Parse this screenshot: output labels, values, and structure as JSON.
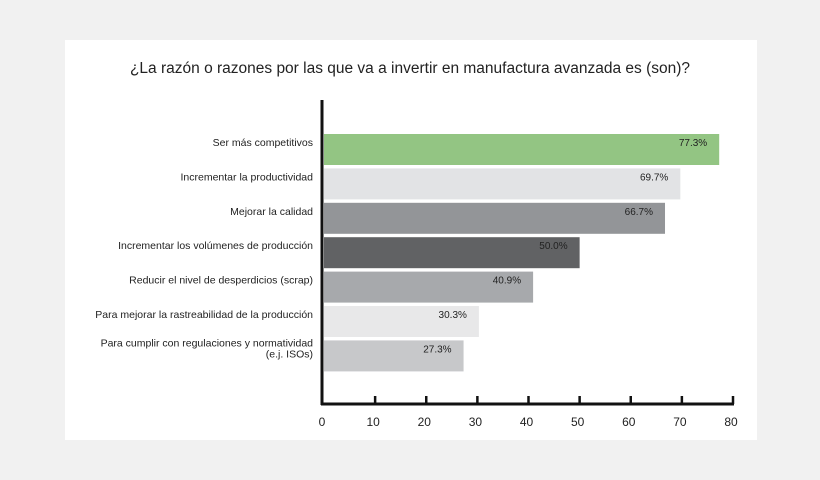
{
  "chart_data": {
    "type": "bar",
    "orientation": "horizontal",
    "title": "¿La razón o razones por las que va a invertir en manufactura avanzada es (son)?",
    "categories": [
      "Ser más competitivos",
      "Incrementar la productividad",
      "Mejorar la calidad",
      "Incrementar los volúmenes de producción",
      "Reducir el nivel de desperdicios (scrap)",
      "Para mejorar la rastreabilidad de la producción",
      "Para cumplir con regulaciones y normatividad (e.j. ISOs)"
    ],
    "values": [
      77.3,
      69.7,
      66.7,
      50.0,
      40.9,
      30.3,
      27.3
    ],
    "data_labels": [
      "77.3%",
      "69.7%",
      "66.7%",
      "50.0%",
      "40.9%",
      "30.3%",
      "27.3%"
    ],
    "colors": [
      "#93c583",
      "#e2e3e5",
      "#939598",
      "#616264",
      "#a7a9ac",
      "#e8e8e9",
      "#c7c8ca"
    ],
    "xlim": [
      0,
      80
    ],
    "xticks": [
      "0",
      "10",
      "20",
      "30",
      "40",
      "50",
      "60",
      "70",
      "80"
    ],
    "grid": false,
    "legend": "none"
  }
}
